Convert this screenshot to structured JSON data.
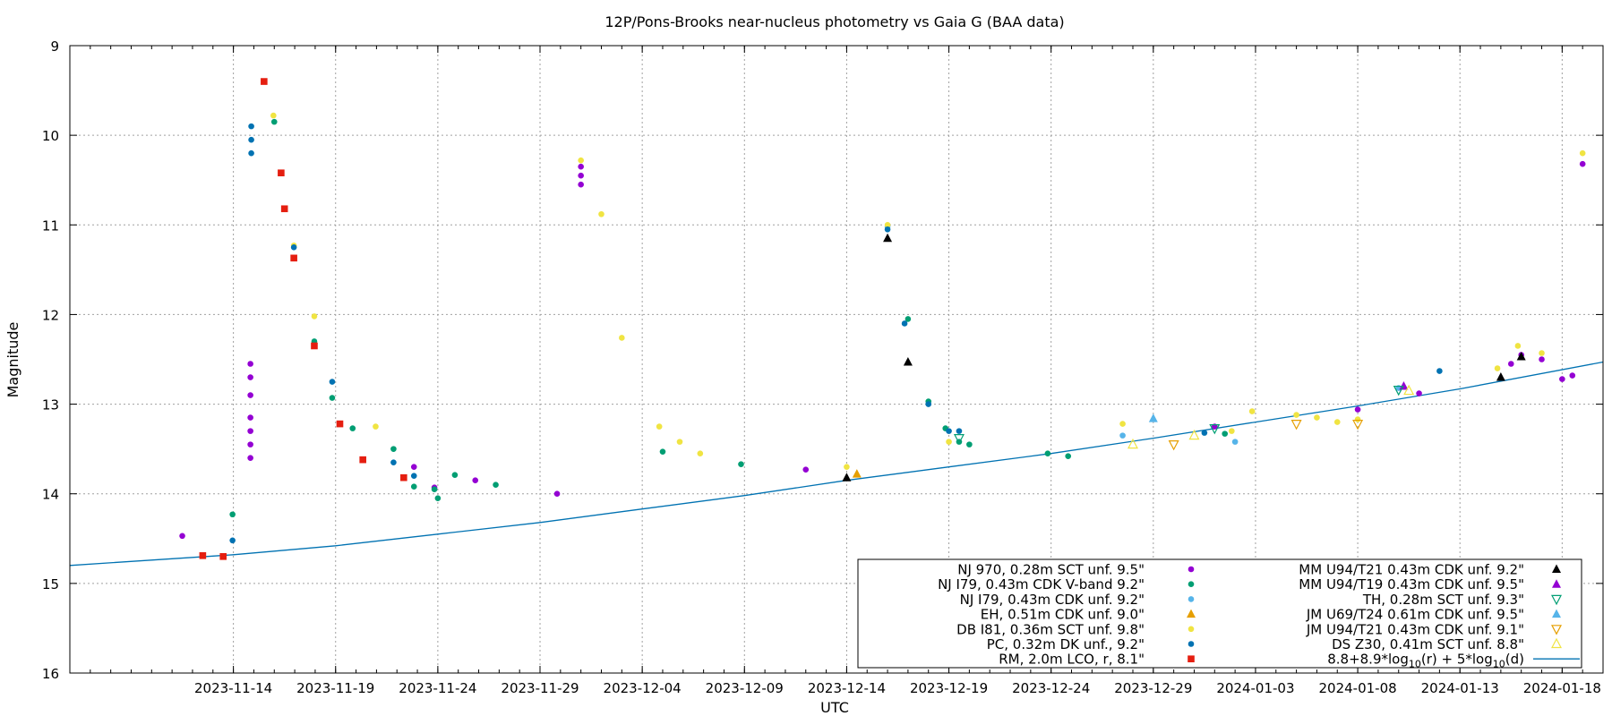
{
  "chart_data": {
    "type": "scatter",
    "title": "12P/Pons-Brooks near-nucleus photometry vs Gaia G (BAA data)",
    "xlabel": "UTC",
    "ylabel": "Magnitude",
    "xlim": [
      "2023-11-06T00:00",
      "2024-01-20T00:00"
    ],
    "ylim": [
      9,
      16
    ],
    "y_inverted": true,
    "grid": true,
    "legend_placement": "bottom-right",
    "y_ticks": [
      "9",
      "10",
      "11",
      "12",
      "13",
      "14",
      "15",
      "16"
    ],
    "x_ticks": [
      "2023-11-14",
      "2023-11-19",
      "2023-11-24",
      "2023-11-29",
      "2023-12-04",
      "2023-12-09",
      "2023-12-14",
      "2023-12-19",
      "2023-12-24",
      "2023-12-29",
      "2024-01-03",
      "2024-01-08",
      "2024-01-13",
      "2024-01-18"
    ],
    "series": [
      {
        "name": "NJ 970, 0.28m SCT unf. 9.5\"",
        "color": "#9400d3",
        "marker": "dot",
        "points": [
          [
            "2023-11-11T12:00",
            14.47
          ],
          [
            "2023-11-14T20:00",
            12.55
          ],
          [
            "2023-11-14T20:00",
            12.7
          ],
          [
            "2023-11-14T20:00",
            12.9
          ],
          [
            "2023-11-14T20:00",
            13.15
          ],
          [
            "2023-11-14T20:00",
            13.3
          ],
          [
            "2023-11-14T20:00",
            13.45
          ],
          [
            "2023-11-14T20:00",
            13.6
          ],
          [
            "2023-11-22T20:00",
            13.7
          ],
          [
            "2023-11-23T20:00",
            13.93
          ],
          [
            "2023-11-25T20:00",
            13.85
          ],
          [
            "2023-11-29T20:00",
            14.0
          ],
          [
            "2023-12-01T00:00",
            10.35
          ],
          [
            "2023-12-01T00:00",
            10.45
          ],
          [
            "2023-12-01T00:00",
            10.55
          ],
          [
            "2023-12-12T00:00",
            13.73
          ],
          [
            "2024-01-01T00:00",
            13.25
          ],
          [
            "2024-01-08T00:00",
            13.06
          ],
          [
            "2024-01-11T00:00",
            12.88
          ],
          [
            "2024-01-15T12:00",
            12.55
          ],
          [
            "2024-01-16T00:00",
            12.45
          ],
          [
            "2024-01-17T00:00",
            12.5
          ],
          [
            "2024-01-18T00:00",
            12.72
          ],
          [
            "2024-01-18T12:00",
            12.68
          ],
          [
            "2024-01-19T00:00",
            10.32
          ]
        ]
      },
      {
        "name": "NJ I79, 0.43m CDK V-band 9.2\"",
        "color": "#009e73",
        "marker": "dot",
        "points": [
          [
            "2023-11-13T23:00",
            14.23
          ],
          [
            "2023-11-16T00:00",
            9.85
          ],
          [
            "2023-11-17T23:00",
            12.3
          ],
          [
            "2023-11-18T20:00",
            12.93
          ],
          [
            "2023-11-19T20:00",
            13.27
          ],
          [
            "2023-11-21T20:00",
            13.5
          ],
          [
            "2023-11-22T20:00",
            13.92
          ],
          [
            "2023-11-23T20:00",
            13.95
          ],
          [
            "2023-11-24T00:00",
            14.05
          ],
          [
            "2023-11-24T20:00",
            13.79
          ],
          [
            "2023-11-26T20:00",
            13.9
          ],
          [
            "2023-12-05T00:00",
            13.53
          ],
          [
            "2023-12-08T20:00",
            13.67
          ],
          [
            "2023-12-17T00:00",
            12.05
          ],
          [
            "2023-12-18T00:00",
            12.97
          ],
          [
            "2023-12-18T20:00",
            13.27
          ],
          [
            "2023-12-19T12:00",
            13.42
          ],
          [
            "2023-12-20T00:00",
            13.45
          ],
          [
            "2023-12-23T20:00",
            13.55
          ],
          [
            "2023-12-24T20:00",
            13.58
          ],
          [
            "2024-01-01T12:00",
            13.33
          ]
        ]
      },
      {
        "name": "NJ I79, 0.43m CDK unf. 9.2\"",
        "color": "#56b4e9",
        "marker": "dot",
        "points": [
          [
            "2023-12-16T00:00",
            11.02
          ],
          [
            "2023-12-27T12:00",
            13.35
          ],
          [
            "2024-01-02T00:00",
            13.42
          ],
          [
            "2024-01-10T00:00",
            12.82
          ]
        ]
      },
      {
        "name": "EH, 0.51m CDK unf. 9.0\"",
        "color": "#e69f00",
        "marker": "triangle",
        "points": [
          [
            "2023-12-14T12:00",
            13.78
          ]
        ]
      },
      {
        "name": "DB I81, 0.36m SCT unf. 9.8\"",
        "color": "#f0e442",
        "marker": "dot",
        "points": [
          [
            "2023-11-15T23:00",
            9.78
          ],
          [
            "2023-11-16T23:00",
            11.23
          ],
          [
            "2023-11-17T23:00",
            12.02
          ],
          [
            "2023-11-20T23:00",
            13.25
          ],
          [
            "2023-12-01T00:00",
            10.28
          ],
          [
            "2023-12-02T00:00",
            10.88
          ],
          [
            "2023-12-03T00:00",
            12.26
          ],
          [
            "2023-12-04T20:00",
            13.25
          ],
          [
            "2023-12-05T20:00",
            13.42
          ],
          [
            "2023-12-06T20:00",
            13.55
          ],
          [
            "2023-12-14T00:00",
            13.7
          ],
          [
            "2023-12-16T00:00",
            11.0
          ],
          [
            "2023-12-19T00:00",
            13.42
          ],
          [
            "2023-12-27T12:00",
            13.22
          ],
          [
            "2024-01-01T20:00",
            13.3
          ],
          [
            "2024-01-02T20:00",
            13.08
          ],
          [
            "2024-01-05T00:00",
            13.12
          ],
          [
            "2024-01-06T00:00",
            13.15
          ],
          [
            "2024-01-07T00:00",
            13.2
          ],
          [
            "2024-01-08T00:00",
            13.17
          ],
          [
            "2024-01-14T20:00",
            12.6
          ],
          [
            "2024-01-15T20:00",
            12.35
          ],
          [
            "2024-01-17T00:00",
            12.43
          ],
          [
            "2024-01-19T00:00",
            10.2
          ]
        ]
      },
      {
        "name": "PC, 0.32m DK unf., 9.2\"",
        "color": "#0072b2",
        "marker": "dot",
        "points": [
          [
            "2023-11-13T23:00",
            14.52
          ],
          [
            "2023-11-14T21:00",
            9.9
          ],
          [
            "2023-11-14T21:00",
            10.05
          ],
          [
            "2023-11-14T21:00",
            10.2
          ],
          [
            "2023-11-16T23:00",
            11.25
          ],
          [
            "2023-11-18T20:00",
            12.75
          ],
          [
            "2023-11-21T20:00",
            13.65
          ],
          [
            "2023-11-22T20:00",
            13.8
          ],
          [
            "2023-12-16T00:00",
            11.05
          ],
          [
            "2023-12-16T20:00",
            12.1
          ],
          [
            "2023-12-18T00:00",
            13.0
          ],
          [
            "2023-12-19T00:00",
            13.3
          ],
          [
            "2023-12-19T12:00",
            13.3
          ],
          [
            "2023-12-31T12:00",
            13.32
          ],
          [
            "2024-01-12T00:00",
            12.63
          ]
        ]
      },
      {
        "name": "RM, 2.0m LCO, r, 8.1\"",
        "color": "#e51e10",
        "marker": "square",
        "points": [
          [
            "2023-11-12T12:00",
            14.69
          ],
          [
            "2023-11-13T12:00",
            14.7
          ],
          [
            "2023-11-15T12:00",
            9.4
          ],
          [
            "2023-11-16T08:00",
            10.42
          ],
          [
            "2023-11-16T12:00",
            10.82
          ],
          [
            "2023-11-16T23:00",
            11.37
          ],
          [
            "2023-11-17T23:00",
            12.35
          ],
          [
            "2023-11-19T05:00",
            13.22
          ],
          [
            "2023-11-20T08:00",
            13.62
          ],
          [
            "2023-11-22T08:00",
            13.82
          ]
        ]
      },
      {
        "name": "MM U94/T21 0.43m CDK unf. 9.2\"",
        "color": "#000000",
        "marker": "triangle",
        "points": [
          [
            "2023-12-14T00:00",
            13.82
          ],
          [
            "2023-12-16T00:00",
            11.15
          ],
          [
            "2023-12-17T00:00",
            12.53
          ],
          [
            "2024-01-15T00:00",
            12.7
          ],
          [
            "2024-01-16T00:00",
            12.47
          ]
        ]
      },
      {
        "name": "MM U94/T19 0.43m CDK unf. 9.5\"",
        "color": "#9400d3",
        "marker": "triangle",
        "points": [
          [
            "2024-01-10T06:00",
            12.8
          ]
        ]
      },
      {
        "name": "TH, 0.28m SCT unf. 9.3\"",
        "color": "#009e73",
        "marker": "triangle-down-open",
        "points": [
          [
            "2023-12-19T12:00",
            13.38
          ],
          [
            "2024-01-01T00:00",
            13.27
          ],
          [
            "2024-01-10T00:00",
            12.84
          ]
        ]
      },
      {
        "name": "JM U69/T24 0.61m CDK unf. 9.5\"",
        "color": "#56b4e9",
        "marker": "triangle",
        "points": [
          [
            "2023-12-29T00:00",
            13.16
          ]
        ]
      },
      {
        "name": "JM U94/T21 0.43m CDK unf. 9.1\"",
        "color": "#e69f00",
        "marker": "triangle-down-open",
        "points": [
          [
            "2023-12-30T00:00",
            13.45
          ],
          [
            "2024-01-05T00:00",
            13.22
          ],
          [
            "2024-01-08T00:00",
            13.22
          ]
        ]
      },
      {
        "name": "DS Z30, 0.41m SCT unf. 8.8\"",
        "color": "#f0e442",
        "marker": "triangle-open",
        "points": [
          [
            "2023-12-28T00:00",
            13.45
          ],
          [
            "2023-12-31T00:00",
            13.35
          ],
          [
            "2024-01-10T12:00",
            12.85
          ]
        ]
      },
      {
        "name": "8.8+8.9*log10(r) + 5*log10(d)",
        "color": "#0072b2",
        "marker": "line",
        "points": [
          [
            "2023-11-06T00:00",
            14.8
          ],
          [
            "2023-11-14T00:00",
            14.68
          ],
          [
            "2023-11-19T00:00",
            14.58
          ],
          [
            "2023-11-24T00:00",
            14.45
          ],
          [
            "2023-11-29T00:00",
            14.32
          ],
          [
            "2023-12-04T00:00",
            14.17
          ],
          [
            "2023-12-09T00:00",
            14.02
          ],
          [
            "2023-12-14T00:00",
            13.85
          ],
          [
            "2023-12-19T00:00",
            13.7
          ],
          [
            "2023-12-24T00:00",
            13.55
          ],
          [
            "2023-12-29T00:00",
            13.38
          ],
          [
            "2024-01-03T00:00",
            13.2
          ],
          [
            "2024-01-08T00:00",
            13.02
          ],
          [
            "2024-01-13T00:00",
            12.83
          ],
          [
            "2024-01-20T00:00",
            12.53
          ]
        ]
      }
    ]
  }
}
